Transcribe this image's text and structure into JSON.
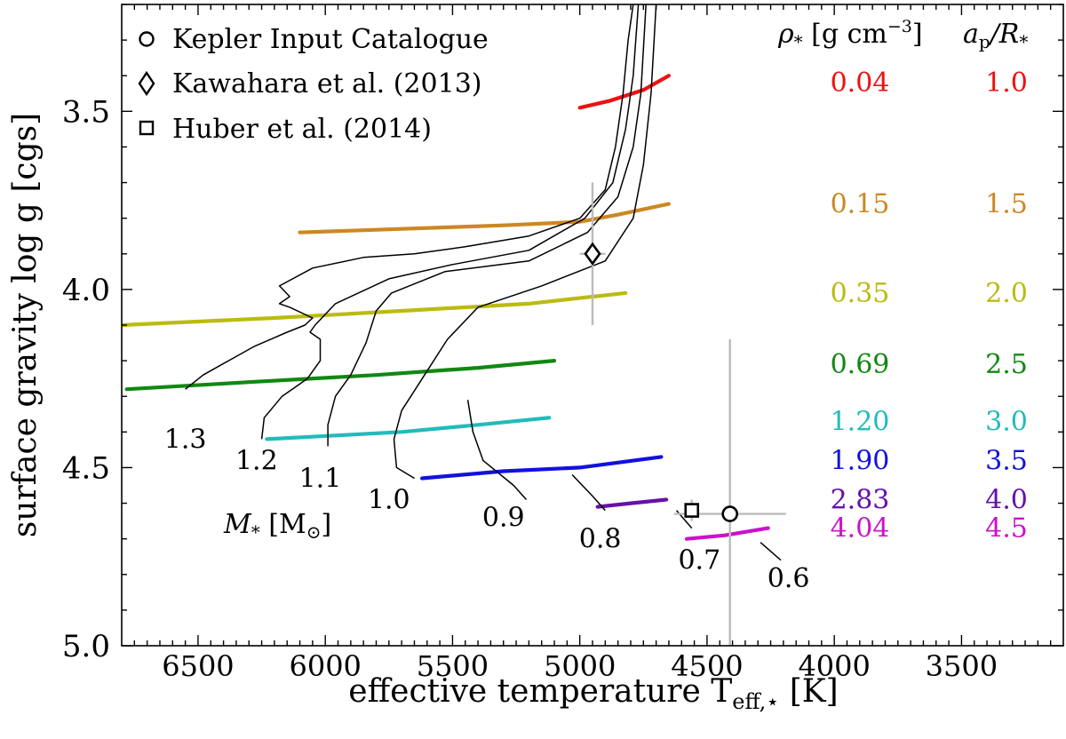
{
  "chart_data": {
    "type": "scatter",
    "title": "",
    "xlabel": "effective temperature T",
    "xlabel_sub": "eff,⋆",
    "xlabel_unit": " [K]",
    "ylabel": "surface gravity log g [cgs]",
    "xlim": [
      6800,
      3100
    ],
    "ylim": [
      5.0,
      3.2
    ],
    "grid": false,
    "x_ticks": [
      6500,
      6000,
      5500,
      5000,
      4500,
      4000,
      3500
    ],
    "x_tick_labels": [
      "6500",
      "6000",
      "5500",
      "5000",
      "4500",
      "4000",
      "3500"
    ],
    "y_ticks": [
      3.5,
      4.0,
      4.5,
      5.0
    ],
    "y_tick_labels": [
      "3.5",
      "4.0",
      "4.5",
      "5.0"
    ],
    "legend": {
      "placement": "top-left",
      "entries": [
        {
          "marker": "circle",
          "label": "Kepler Input Catalogue"
        },
        {
          "marker": "diamond",
          "label": "Kawahara et al. (2013)"
        },
        {
          "marker": "square",
          "label": "Huber et al. (2014)"
        }
      ]
    },
    "density_table": {
      "header_rho": "ρ",
      "header_rho_sub": "*",
      "header_rho_unit": " [g cm",
      "header_rho_exp": "−3",
      "header_rho_close": "]",
      "header_a": "a",
      "header_a_sub": "p",
      "header_a_over": "/R",
      "header_a_over_sub": "*",
      "rows": [
        {
          "rho": "0.04",
          "a_over_r": "1.0",
          "color": "#ee1111",
          "logg": 3.42
        },
        {
          "rho": "0.15",
          "a_over_r": "1.5",
          "color": "#cc8822",
          "logg": 3.76
        },
        {
          "rho": "0.35",
          "a_over_r": "2.0",
          "color": "#bbbb11",
          "logg": 4.01
        },
        {
          "rho": "0.69",
          "a_over_r": "2.5",
          "color": "#118811",
          "logg": 4.21
        },
        {
          "rho": "1.20",
          "a_over_r": "3.0",
          "color": "#22bbbb",
          "logg": 4.37
        },
        {
          "rho": "1.90",
          "a_over_r": "3.5",
          "color": "#1111dd",
          "logg": 4.48
        },
        {
          "rho": "2.83",
          "a_over_r": "4.0",
          "color": "#6611aa",
          "logg": 4.59
        },
        {
          "rho": "4.04",
          "a_over_r": "4.5",
          "color": "#cc11cc",
          "logg": 4.67
        }
      ]
    },
    "density_tracks": [
      {
        "rho": "0.04",
        "color": "#ee1111",
        "points": [
          [
            5000,
            3.49
          ],
          [
            4880,
            3.47
          ],
          [
            4750,
            3.44
          ],
          [
            4650,
            3.4
          ]
        ]
      },
      {
        "rho": "0.15",
        "color": "#cc8822",
        "points": [
          [
            6100,
            3.84
          ],
          [
            5700,
            3.83
          ],
          [
            5300,
            3.82
          ],
          [
            5000,
            3.81
          ],
          [
            4850,
            3.79
          ],
          [
            4650,
            3.76
          ]
        ]
      },
      {
        "rho": "0.35",
        "color": "#bbbb11",
        "points": [
          [
            6800,
            4.1
          ],
          [
            6200,
            4.08
          ],
          [
            5700,
            4.06
          ],
          [
            5200,
            4.04
          ],
          [
            4820,
            4.01
          ]
        ]
      },
      {
        "rho": "0.69",
        "color": "#118811",
        "points": [
          [
            6780,
            4.28
          ],
          [
            6300,
            4.26
          ],
          [
            5800,
            4.24
          ],
          [
            5400,
            4.22
          ],
          [
            5100,
            4.2
          ]
        ]
      },
      {
        "rho": "1.20",
        "color": "#22bbbb",
        "points": [
          [
            6230,
            4.42
          ],
          [
            5700,
            4.4
          ],
          [
            5400,
            4.38
          ],
          [
            5120,
            4.36
          ]
        ]
      },
      {
        "rho": "1.90",
        "color": "#1111dd",
        "points": [
          [
            5620,
            4.53
          ],
          [
            5300,
            4.51
          ],
          [
            5000,
            4.5
          ],
          [
            4680,
            4.47
          ]
        ]
      },
      {
        "rho": "2.83",
        "color": "#6611aa",
        "points": [
          [
            4930,
            4.61
          ],
          [
            4800,
            4.6
          ],
          [
            4660,
            4.59
          ]
        ]
      },
      {
        "rho": "4.04",
        "color": "#cc11cc",
        "points": [
          [
            4580,
            4.7
          ],
          [
            4430,
            4.69
          ],
          [
            4260,
            4.67
          ]
        ]
      }
    ],
    "mass_tracks": [
      {
        "mass": "1.3",
        "label_at": [
          6550,
          4.42
        ],
        "points": [
          [
            6550,
            4.28
          ],
          [
            6480,
            4.24
          ],
          [
            6380,
            4.2
          ],
          [
            6280,
            4.16
          ],
          [
            6150,
            4.12
          ],
          [
            6080,
            4.1
          ],
          [
            6050,
            4.08
          ],
          [
            6140,
            4.05
          ],
          [
            6180,
            4.04
          ],
          [
            6140,
            4.02
          ],
          [
            6180,
            3.99
          ],
          [
            6050,
            3.94
          ],
          [
            5850,
            3.91
          ],
          [
            5650,
            3.9
          ],
          [
            5450,
            3.88
          ],
          [
            5200,
            3.85
          ],
          [
            5000,
            3.8
          ],
          [
            4900,
            3.72
          ],
          [
            4860,
            3.6
          ],
          [
            4830,
            3.45
          ],
          [
            4810,
            3.3
          ],
          [
            4790,
            3.2
          ]
        ]
      },
      {
        "mass": "1.2",
        "label_at": [
          6270,
          4.48
        ],
        "points": [
          [
            6250,
            4.42
          ],
          [
            6240,
            4.36
          ],
          [
            6170,
            4.3
          ],
          [
            6070,
            4.25
          ],
          [
            6020,
            4.2
          ],
          [
            6020,
            4.14
          ],
          [
            6060,
            4.12
          ],
          [
            6040,
            4.1
          ],
          [
            5960,
            4.04
          ],
          [
            5750,
            3.97
          ],
          [
            5500,
            3.93
          ],
          [
            5200,
            3.89
          ],
          [
            4980,
            3.8
          ],
          [
            4870,
            3.7
          ],
          [
            4820,
            3.55
          ],
          [
            4790,
            3.4
          ],
          [
            4770,
            3.2
          ]
        ]
      },
      {
        "mass": "1.1",
        "label_at": [
          6020,
          4.53
        ],
        "points": [
          [
            5990,
            4.44
          ],
          [
            5990,
            4.38
          ],
          [
            5960,
            4.3
          ],
          [
            5900,
            4.24
          ],
          [
            5840,
            4.15
          ],
          [
            5800,
            4.06
          ],
          [
            5740,
            4.01
          ],
          [
            5530,
            3.95
          ],
          [
            5200,
            3.92
          ],
          [
            4970,
            3.84
          ],
          [
            4850,
            3.74
          ],
          [
            4790,
            3.6
          ],
          [
            4760,
            3.45
          ],
          [
            4740,
            3.2
          ]
        ]
      },
      {
        "mass": "1.0",
        "label_at": [
          5750,
          4.59
        ],
        "points": [
          [
            5650,
            4.53
          ],
          [
            5720,
            4.5
          ],
          [
            5730,
            4.42
          ],
          [
            5700,
            4.34
          ],
          [
            5610,
            4.24
          ],
          [
            5520,
            4.14
          ],
          [
            5400,
            4.05
          ],
          [
            5150,
            3.99
          ],
          [
            4900,
            3.92
          ],
          [
            4790,
            3.8
          ],
          [
            4750,
            3.65
          ],
          [
            4720,
            3.45
          ],
          [
            4700,
            3.2
          ]
        ]
      },
      {
        "mass": "0.9",
        "label_at": [
          5300,
          4.64
        ],
        "points": [
          [
            5440,
            4.31
          ],
          [
            5420,
            4.4
          ],
          [
            5380,
            4.48
          ],
          [
            5260,
            4.55
          ],
          [
            5210,
            4.59
          ]
        ]
      },
      {
        "mass": "0.8",
        "label_at": [
          4920,
          4.7
        ],
        "points": [
          [
            5030,
            4.52
          ],
          [
            4950,
            4.58
          ],
          [
            4900,
            4.62
          ]
        ]
      },
      {
        "mass": "0.7",
        "label_at": [
          4530,
          4.76
        ],
        "points": [
          [
            4620,
            4.62
          ],
          [
            4560,
            4.67
          ]
        ]
      },
      {
        "mass": "0.6",
        "label_at": [
          4180,
          4.81
        ],
        "points": [
          [
            4290,
            4.71
          ],
          [
            4210,
            4.76
          ]
        ]
      }
    ],
    "mass_axis_label": "M",
    "mass_axis_label_sub": "*",
    "mass_axis_label_unit": " [M",
    "mass_axis_label_unit_sub": "⊙",
    "mass_axis_label_close": "]",
    "points": [
      {
        "source": "Kepler Input Catalogue",
        "marker": "circle",
        "teff": 4410,
        "teff_err": [
          220,
          220
        ],
        "logg": 4.63,
        "logg_err": [
          0.49,
          0.49
        ]
      },
      {
        "source": "Kawahara et al. (2013)",
        "marker": "diamond",
        "teff": 4950,
        "teff_err": [
          50,
          50
        ],
        "logg": 3.9,
        "logg_err": [
          0.2,
          0.2
        ]
      },
      {
        "source": "Huber et al. (2014)",
        "marker": "square",
        "teff": 4560,
        "teff_err": [
          0,
          0
        ],
        "logg": 4.62,
        "logg_err": [
          0.03,
          0.03
        ]
      }
    ],
    "errorbar_color": "#bbbbbb"
  }
}
